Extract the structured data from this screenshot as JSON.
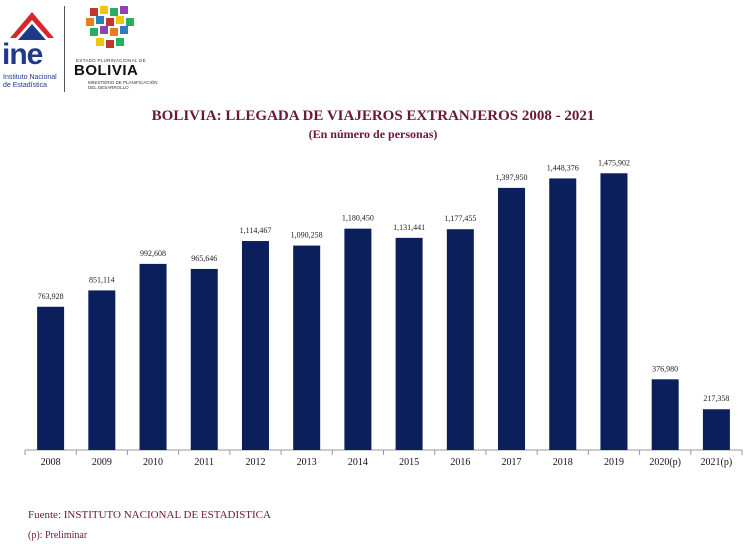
{
  "header": {
    "ine_brand": "ine",
    "ine_subtitle": "Instituto Nacional de Estadística",
    "gov_state": "ESTADO PLURINACIONAL DE",
    "gov_country": "BOLIVIA",
    "gov_ministry": "MINISTERIO DE PLANIFICACIÓN DEL DESARROLLO"
  },
  "colors": {
    "bar": "#0a1f5c",
    "title": "#6b1739",
    "ine_red": "#d7262c",
    "ine_blue": "#1e3a8a"
  },
  "chart_data": {
    "type": "bar",
    "title": "BOLIVIA: LLEGADA DE VIAJEROS EXTRANJEROS 2008 - 2021",
    "subtitle": "(En número de personas)",
    "xlabel": "",
    "ylabel": "",
    "ylim": [
      0,
      1600000
    ],
    "grid": false,
    "categories": [
      "2008",
      "2009",
      "2010",
      "2011",
      "2012",
      "2013",
      "2014",
      "2015",
      "2016",
      "2017",
      "2018",
      "2019",
      "2020(p)",
      "2021(p)"
    ],
    "values": [
      763928,
      851114,
      992608,
      965646,
      1114467,
      1090258,
      1180450,
      1131441,
      1177455,
      1397950,
      1448376,
      1475902,
      376980,
      217358
    ],
    "value_labels": [
      "763,928",
      "851,114",
      "992,608",
      "965,646",
      "1,114,467",
      "1,090,258",
      "1,180,450",
      "1,131,441",
      "1,177,455",
      "1,397,950",
      "1,448,376",
      "1,475,902",
      "376,980",
      "217,358"
    ]
  },
  "footer": {
    "source": "Fuente: INSTITUTO NACIONAL DE ESTADISTICA",
    "note": "(p): Preliminar"
  }
}
